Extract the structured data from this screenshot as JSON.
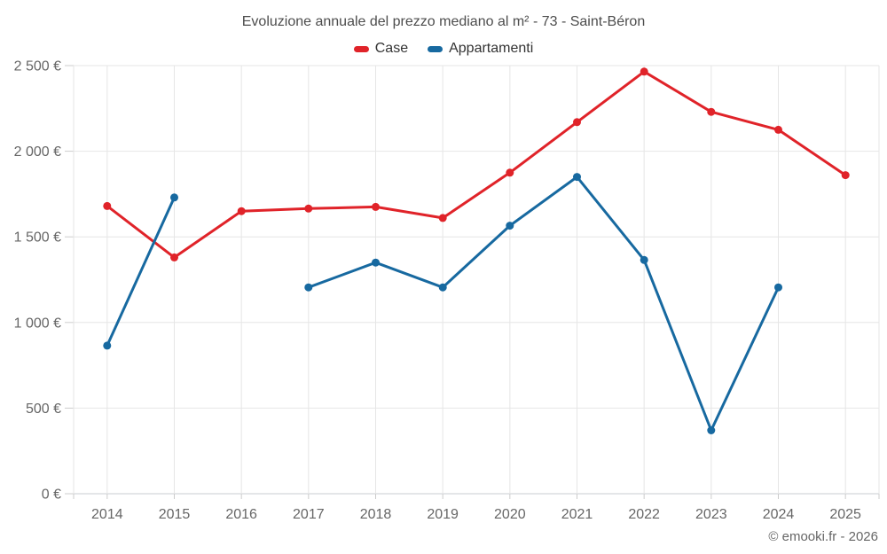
{
  "chart_data": {
    "type": "line",
    "title": "Evoluzione annuale del prezzo mediano al m² - 73 - Saint-Béron",
    "categories": [
      "2014",
      "2015",
      "2016",
      "2017",
      "2018",
      "2019",
      "2020",
      "2021",
      "2022",
      "2023",
      "2024",
      "2025"
    ],
    "series": [
      {
        "name": "Case",
        "color": "#e02329",
        "values": [
          1680,
          1380,
          1650,
          1665,
          1675,
          1610,
          1875,
          2170,
          2465,
          2230,
          2125,
          1860
        ]
      },
      {
        "name": "Appartamenti",
        "color": "#1769a0",
        "values": [
          865,
          1730,
          null,
          1205,
          1350,
          1205,
          1565,
          1850,
          1365,
          370,
          1205,
          null
        ]
      }
    ],
    "ylim": [
      0,
      2500
    ],
    "yticks": [
      {
        "value": 0,
        "label": "0 €"
      },
      {
        "value": 500,
        "label": "500 €"
      },
      {
        "value": 1000,
        "label": "1 000 €"
      },
      {
        "value": 1500,
        "label": "1 500 €"
      },
      {
        "value": 2000,
        "label": "2 000 €"
      },
      {
        "value": 2500,
        "label": "2 500 €"
      }
    ],
    "grid": true,
    "legend_position": "top",
    "colors": {
      "background": "#ffffff",
      "grid": "#e6e6e6",
      "tick": "#cccccc",
      "axis_line": "#c9ced2",
      "axis_text": "#666666",
      "title_text": "#4d4d4d",
      "legend_text": "#333333"
    }
  },
  "credits": {
    "label": "© emooki.fr - 2026"
  }
}
